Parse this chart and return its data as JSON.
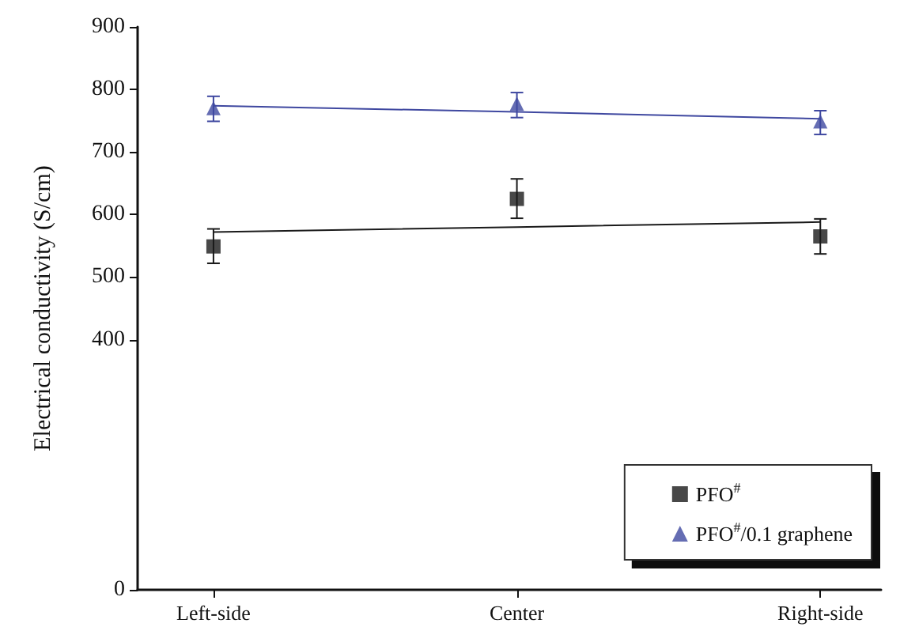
{
  "chart_data": {
    "type": "scatter",
    "ylabel": "Electrical conductivity (S/cm)",
    "categories": [
      "Left-side",
      "Center",
      "Right-side"
    ],
    "ylim": [
      0,
      900
    ],
    "yticks": [
      0,
      400,
      500,
      600,
      700,
      800,
      900
    ],
    "legend": "bottom right",
    "grid": false,
    "series": [
      {
        "name": "PFO$^{#}$",
        "marker": "square",
        "color": "#1a1a1a",
        "values": [
          549,
          625,
          565
        ],
        "errors": [
          [
            522,
            577
          ],
          [
            594,
            657
          ],
          [
            537,
            593
          ]
        ]
      },
      {
        "name": "PFO$^{#}$/0.1 graphene",
        "marker": "triangle",
        "color": "#3f48a0",
        "values": [
          770,
          777,
          749
        ],
        "errors": [
          [
            749,
            789
          ],
          [
            755,
            795
          ],
          [
            728,
            766
          ]
        ]
      },
      {
        "type": "line",
        "marker": "none",
        "color": "#1a1a1a",
        "values": [
          572,
          580,
          588
        ]
      },
      {
        "type": "line",
        "marker": "none",
        "color": "#3f48a0",
        "values": [
          774,
          764,
          753
        ]
      }
    ]
  }
}
